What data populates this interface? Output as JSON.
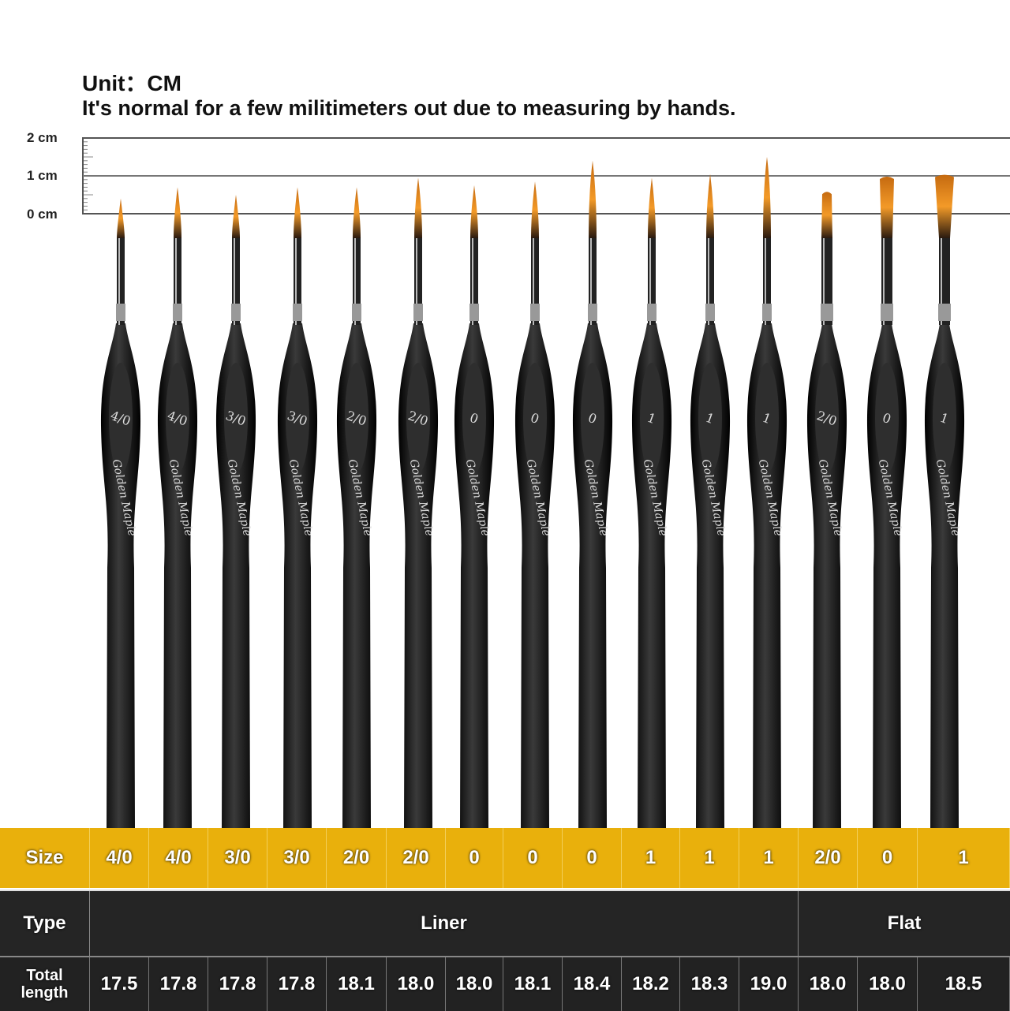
{
  "header": {
    "unit": "Unit：CM",
    "note": "It's normal for a few militimeters out due to measuring by hands."
  },
  "ruler": {
    "labels": [
      "2 cm",
      "1 cm",
      "0 cm"
    ]
  },
  "brand_logo": "Golden Maple",
  "colors": {
    "size_row": "#e9b00c",
    "dark_row": "#252525",
    "bristle": "#e08a1c",
    "handle": "#111111"
  },
  "brushes": [
    {
      "size": "4/0",
      "type": "Liner",
      "total_length_cm": "17.5",
      "tip_cm": 0.4
    },
    {
      "size": "4/0",
      "type": "Liner",
      "total_length_cm": "17.8",
      "tip_cm": 0.7
    },
    {
      "size": "3/0",
      "type": "Liner",
      "total_length_cm": "17.8",
      "tip_cm": 0.5
    },
    {
      "size": "3/0",
      "type": "Liner",
      "total_length_cm": "17.8",
      "tip_cm": 0.7
    },
    {
      "size": "2/0",
      "type": "Liner",
      "total_length_cm": "18.1",
      "tip_cm": 0.7
    },
    {
      "size": "2/0",
      "type": "Liner",
      "total_length_cm": "18.0",
      "tip_cm": 0.95
    },
    {
      "size": "0",
      "type": "Liner",
      "total_length_cm": "18.0",
      "tip_cm": 0.75
    },
    {
      "size": "0",
      "type": "Liner",
      "total_length_cm": "18.1",
      "tip_cm": 0.85
    },
    {
      "size": "0",
      "type": "Liner",
      "total_length_cm": "18.4",
      "tip_cm": 1.4
    },
    {
      "size": "1",
      "type": "Liner",
      "total_length_cm": "18.2",
      "tip_cm": 0.95
    },
    {
      "size": "1",
      "type": "Liner",
      "total_length_cm": "18.3",
      "tip_cm": 1.05
    },
    {
      "size": "1",
      "type": "Liner",
      "total_length_cm": "19.0",
      "tip_cm": 1.5
    },
    {
      "size": "2/0",
      "type": "Flat",
      "total_length_cm": "18.0",
      "tip_cm": 0.6
    },
    {
      "size": "0",
      "type": "Flat",
      "total_length_cm": "18.0",
      "tip_cm": 1.0
    },
    {
      "size": "1",
      "type": "Flat",
      "total_length_cm": "18.5",
      "tip_cm": 1.05
    }
  ],
  "table": {
    "size_label": "Size",
    "type_label": "Type",
    "length_label_1": "Total",
    "length_label_2": "length",
    "types": [
      "Liner",
      "Flat"
    ]
  }
}
